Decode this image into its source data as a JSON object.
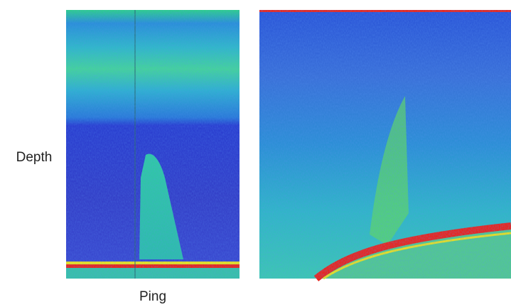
{
  "labels": {
    "y_axis": "Depth",
    "x_axis": "Ping"
  }
}
